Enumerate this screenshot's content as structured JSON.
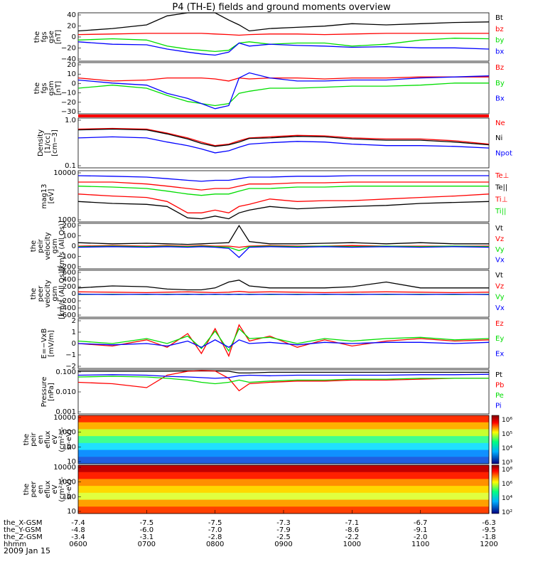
{
  "title": "P4 (TH-E) fields and ground moments overview",
  "date": "2009 Jan 15",
  "time_axis": {
    "rows": [
      {
        "label": "the_X-GSM",
        "values": [
          "-7.4",
          "-7.5",
          "-7.5",
          "-7.3",
          "-7.1",
          "-6.7",
          "-6.3"
        ]
      },
      {
        "label": "the_Y-GSM",
        "values": [
          "-4.8",
          "-6.0",
          "-7.0",
          "-7.9",
          "-8.6",
          "-9.1",
          "-9.5"
        ]
      },
      {
        "label": "the_Z-GSM",
        "values": [
          "-3.4",
          "-3.1",
          "-2.8",
          "-2.5",
          "-2.2",
          "-2.0",
          "-1.8"
        ]
      },
      {
        "label": "hhmm",
        "values": [
          "0600",
          "0700",
          "0800",
          "0900",
          "1000",
          "1100",
          "1200"
        ]
      }
    ]
  },
  "colors": {
    "black": "#000000",
    "red": "#ff0000",
    "green": "#00dd00",
    "blue": "#0000ff"
  },
  "panels": [
    {
      "ylabel": [
        "the",
        "fgs",
        "gse",
        "[nT]"
      ],
      "ticks": [
        "40",
        "20",
        "0",
        "−20",
        "−40"
      ],
      "legend": [
        {
          "t": "Bt",
          "c": "black"
        },
        {
          "t": "bz",
          "c": "red"
        },
        {
          "t": "by",
          "c": "green"
        },
        {
          "t": "bx",
          "c": "blue"
        }
      ]
    },
    {
      "ylabel": [
        "the",
        "fgs",
        "gsm",
        "[nT]"
      ],
      "ticks": [
        "20",
        "10",
        "0",
        "−10",
        "−20",
        "−30"
      ],
      "legend": [
        {
          "t": "Bz",
          "c": "red"
        },
        {
          "t": "By",
          "c": "green"
        },
        {
          "t": "Bx",
          "c": "blue"
        }
      ]
    },
    {
      "ylabel": [
        "Density",
        "[1/cc]",
        "[cm−3]"
      ],
      "ticks": [
        "1.0",
        "0.1"
      ],
      "legend": [
        {
          "t": "Ne",
          "c": "red"
        },
        {
          "t": "Ni",
          "c": "black"
        },
        {
          "t": "Npot",
          "c": "blue"
        }
      ]
    },
    {
      "ylabel": [
        "mag13",
        "[eV]"
      ],
      "ticks": [
        "10000",
        "1000"
      ],
      "legend": [
        {
          "t": "Te⊥",
          "c": "red"
        },
        {
          "t": "Te||",
          "c": "black"
        },
        {
          "t": "Ti⊥",
          "c": "red"
        },
        {
          "t": "Ti||",
          "c": "green"
        }
      ]
    },
    {
      "ylabel": [
        "the",
        "peir",
        "velocity",
        "gsm",
        "[km/s (All Qs)]"
      ],
      "ticks": [
        "200",
        "100",
        "0",
        "−100",
        "−200"
      ],
      "legend": [
        {
          "t": "Vt",
          "c": "black"
        },
        {
          "t": "Vz",
          "c": "red"
        },
        {
          "t": "Vy",
          "c": "green"
        },
        {
          "t": "Vx",
          "c": "blue"
        }
      ]
    },
    {
      "ylabel": [
        "the",
        "peer",
        "velocity",
        "gsm",
        "[km/s (All Qs)]"
      ],
      "ticks": [
        "600",
        "400",
        "200",
        "0",
        "−200",
        "−400",
        "−600"
      ],
      "legend": [
        {
          "t": "Vt",
          "c": "black"
        },
        {
          "t": "Vz",
          "c": "red"
        },
        {
          "t": "Vy",
          "c": "green"
        },
        {
          "t": "Vx",
          "c": "blue"
        }
      ]
    },
    {
      "ylabel": [
        "E=−VxB",
        "[mV/m]"
      ],
      "ticks": [
        "2",
        "1",
        "0",
        "−1",
        "−2"
      ],
      "legend": [
        {
          "t": "Ez",
          "c": "red"
        },
        {
          "t": "Ey",
          "c": "green"
        },
        {
          "t": "Ex",
          "c": "blue"
        }
      ]
    },
    {
      "ylabel": [
        "Pressure",
        "[nPa]"
      ],
      "ticks": [
        "0.100",
        "0.010",
        "0.001"
      ],
      "legend": [
        {
          "t": "Pt",
          "c": "black"
        },
        {
          "t": "Pb",
          "c": "red"
        },
        {
          "t": "Pe",
          "c": "green"
        },
        {
          "t": "Pi",
          "c": "blue"
        }
      ]
    },
    {
      "ylabel": [
        "the",
        "peir",
        "en",
        "eflux",
        "eV",
        "(cm²-s-",
        "sr-eV)"
      ],
      "ticks": [
        "10000",
        "1000",
        "100",
        "10"
      ],
      "colorbar": [
        "10⁶",
        "10⁵",
        "10⁴",
        "10³"
      ]
    },
    {
      "ylabel": [
        "the",
        "peer",
        "en",
        "eflux",
        "eV",
        "(cm²-s-",
        "sr-eV)"
      ],
      "ticks": [
        "10000",
        "1000",
        "100",
        "10"
      ],
      "colorbar": [
        "10⁸",
        "10⁶",
        "10⁴",
        "10²"
      ]
    }
  ],
  "chart_data": {
    "type": "line",
    "x_unit": "hhmm UT",
    "x_ticks": [
      "0600",
      "0700",
      "0800",
      "0900",
      "1000",
      "1100",
      "1200"
    ],
    "xlim": [
      "0600",
      "1200"
    ],
    "x_hours": [
      6.0,
      6.5,
      7.0,
      7.3,
      7.6,
      7.8,
      8.0,
      8.2,
      8.35,
      8.5,
      8.8,
      9.2,
      9.6,
      10.0,
      10.5,
      11.0,
      11.5,
      12.0
    ],
    "series": [
      {
        "panel": 0,
        "name": "Bt",
        "color": "#000000",
        "ylim": [
          -40,
          40
        ],
        "values": [
          10,
          14,
          20,
          35,
          42,
          42,
          40,
          28,
          20,
          10,
          14,
          16,
          18,
          22,
          20,
          22,
          24,
          25
        ]
      },
      {
        "panel": 0,
        "name": "bz",
        "color": "#ff0000",
        "ylim": [
          -40,
          40
        ],
        "values": [
          4,
          5,
          6,
          6,
          6,
          6,
          5,
          4,
          3,
          4,
          5,
          5,
          4,
          5,
          6,
          6,
          6,
          6
        ]
      },
      {
        "panel": 0,
        "name": "by",
        "color": "#00dd00",
        "ylim": [
          -40,
          40
        ],
        "values": [
          -5,
          -3,
          -5,
          -15,
          -20,
          -22,
          -24,
          -22,
          -10,
          -8,
          -12,
          -10,
          -10,
          -15,
          -12,
          -5,
          -2,
          -3
        ]
      },
      {
        "panel": 0,
        "name": "bx",
        "color": "#0000ff",
        "ylim": [
          -40,
          40
        ],
        "values": [
          -8,
          -12,
          -13,
          -20,
          -25,
          -28,
          -30,
          -25,
          -10,
          -15,
          -12,
          -14,
          -15,
          -17,
          -16,
          -18,
          -18,
          -20
        ]
      },
      {
        "panel": 1,
        "name": "Bz",
        "color": "#ff0000",
        "ylim": [
          -30,
          20
        ],
        "values": [
          5,
          2,
          3,
          5,
          5,
          5,
          4,
          2,
          5,
          4,
          5,
          5,
          4,
          5,
          5,
          6,
          6,
          6
        ]
      },
      {
        "panel": 1,
        "name": "By",
        "color": "#00dd00",
        "ylim": [
          -30,
          20
        ],
        "values": [
          -5,
          -2,
          -5,
          -12,
          -18,
          -20,
          -22,
          -20,
          -10,
          -8,
          -5,
          -5,
          -4,
          -3,
          -3,
          -2,
          0,
          0
        ]
      },
      {
        "panel": 1,
        "name": "Bx",
        "color": "#0000ff",
        "ylim": [
          -30,
          20
        ],
        "values": [
          3,
          0,
          -2,
          -10,
          -15,
          -20,
          -25,
          -22,
          5,
          10,
          5,
          2,
          2,
          3,
          3,
          5,
          6,
          7
        ]
      },
      {
        "panel": 2,
        "name": "Ne",
        "color": "#ff0000",
        "ylim": [
          0.1,
          1.0
        ],
        "log": true,
        "values": [
          0.6,
          0.62,
          0.6,
          0.5,
          0.4,
          0.33,
          0.28,
          0.3,
          0.35,
          0.4,
          0.42,
          0.45,
          0.44,
          0.4,
          0.38,
          0.38,
          0.35,
          0.3
        ]
      },
      {
        "panel": 2,
        "name": "Ni",
        "color": "#000000",
        "ylim": [
          0.1,
          1.0
        ],
        "log": true,
        "values": [
          0.58,
          0.6,
          0.58,
          0.48,
          0.38,
          0.31,
          0.27,
          0.29,
          0.33,
          0.39,
          0.4,
          0.43,
          0.42,
          0.38,
          0.36,
          0.36,
          0.33,
          0.29
        ]
      },
      {
        "panel": 2,
        "name": "Npot",
        "color": "#0000ff",
        "ylim": [
          0.1,
          1.0
        ],
        "log": true,
        "values": [
          0.4,
          0.42,
          0.4,
          0.33,
          0.28,
          0.24,
          0.2,
          0.22,
          0.26,
          0.3,
          0.32,
          0.34,
          0.33,
          0.3,
          0.28,
          0.28,
          0.27,
          0.25
        ]
      },
      {
        "panel": 3,
        "name": "Te⊥",
        "color": "#ff0000",
        "ylim": [
          1000,
          10000
        ],
        "log": true,
        "values": [
          3500,
          3200,
          3000,
          2500,
          1500,
          1500,
          1700,
          1500,
          2000,
          2200,
          2800,
          2500,
          2600,
          2600,
          2800,
          3000,
          3200,
          3500
        ]
      },
      {
        "panel": 3,
        "name": "Te||",
        "color": "#000000",
        "ylim": [
          1000,
          10000
        ],
        "log": true,
        "values": [
          2500,
          2300,
          2200,
          2000,
          1200,
          1150,
          1300,
          1150,
          1500,
          1700,
          2000,
          1800,
          1900,
          2000,
          2100,
          2300,
          2400,
          2500
        ]
      },
      {
        "panel": 3,
        "name": "Ti⊥",
        "color": "#ff0000",
        "ylim": [
          1000,
          10000
        ],
        "log": true,
        "values": [
          6000,
          6000,
          5500,
          5000,
          4500,
          4200,
          4500,
          4500,
          5000,
          5500,
          5500,
          5800,
          5800,
          6000,
          6000,
          6000,
          6000,
          6000
        ]
      },
      {
        "panel": 3,
        "name": "Ti||",
        "color": "#00dd00",
        "ylim": [
          1000,
          10000
        ],
        "log": true,
        "values": [
          5000,
          4800,
          4500,
          4000,
          3500,
          3300,
          3500,
          3500,
          4000,
          4500,
          4500,
          4800,
          4800,
          5000,
          5000,
          5000,
          5000,
          5000
        ]
      },
      {
        "panel": 3,
        "name": "Ti (blue)",
        "color": "#0000ff",
        "ylim": [
          1000,
          10000
        ],
        "log": true,
        "values": [
          8000,
          7800,
          7500,
          7000,
          6500,
          6200,
          6500,
          6500,
          7000,
          7500,
          7500,
          7800,
          7800,
          8000,
          8000,
          8000,
          8000,
          8000
        ]
      },
      {
        "panel": 4,
        "name": "Vt",
        "color": "#000000",
        "ylim": [
          -200,
          200
        ],
        "values": [
          30,
          20,
          25,
          20,
          15,
          20,
          25,
          30,
          180,
          40,
          20,
          20,
          25,
          30,
          20,
          30,
          20,
          20
        ]
      },
      {
        "panel": 4,
        "name": "Vz",
        "color": "#ff0000",
        "ylim": [
          -200,
          200
        ],
        "values": [
          0,
          5,
          0,
          5,
          0,
          5,
          0,
          0,
          -10,
          0,
          5,
          0,
          0,
          5,
          0,
          0,
          0,
          0
        ]
      },
      {
        "panel": 4,
        "name": "Vy",
        "color": "#00dd00",
        "ylim": [
          -200,
          200
        ],
        "values": [
          -5,
          0,
          -5,
          0,
          -5,
          0,
          -5,
          -10,
          -40,
          -5,
          0,
          -5,
          0,
          -5,
          0,
          -5,
          0,
          -5
        ]
      },
      {
        "panel": 4,
        "name": "Vx",
        "color": "#0000ff",
        "ylim": [
          -200,
          200
        ],
        "values": [
          -10,
          -5,
          -10,
          -5,
          -10,
          -5,
          -10,
          -20,
          -100,
          -10,
          -5,
          -10,
          -5,
          -10,
          -5,
          -10,
          -5,
          -10
        ]
      },
      {
        "panel": 5,
        "name": "Vt",
        "color": "#000000",
        "ylim": [
          -600,
          600
        ],
        "values": [
          150,
          200,
          180,
          120,
          100,
          100,
          150,
          300,
          350,
          200,
          150,
          150,
          150,
          180,
          300,
          150,
          150,
          150
        ]
      },
      {
        "panel": 5,
        "name": "Vz",
        "color": "#ff0000",
        "ylim": [
          -600,
          600
        ],
        "values": [
          50,
          40,
          30,
          40,
          50,
          40,
          30,
          40,
          60,
          40,
          50,
          40,
          30,
          40,
          50,
          40,
          30,
          40
        ]
      },
      {
        "panel": 5,
        "name": "Vy",
        "color": "#00dd00",
        "ylim": [
          -600,
          600
        ],
        "values": [
          -20,
          -10,
          -20,
          -10,
          -20,
          -10,
          -20,
          -10,
          -20,
          -10,
          -20,
          -10,
          -20,
          -10,
          -20,
          -10,
          -20,
          -10
        ]
      },
      {
        "panel": 5,
        "name": "Vx",
        "color": "#0000ff",
        "ylim": [
          -600,
          600
        ],
        "values": [
          -10,
          -20,
          -10,
          -20,
          -10,
          -20,
          -10,
          -20,
          -10,
          -20,
          -10,
          -20,
          -10,
          -20,
          -10,
          -20,
          -10,
          -20
        ]
      },
      {
        "panel": 6,
        "name": "Ez",
        "color": "#ff0000",
        "ylim": [
          -2,
          2
        ],
        "values": [
          0,
          -0.2,
          0.3,
          -0.3,
          0.8,
          -0.8,
          1.2,
          -1.0,
          1.5,
          0.2,
          0.6,
          -0.3,
          0.3,
          -0.2,
          0.2,
          0.4,
          0.2,
          0.3
        ]
      },
      {
        "panel": 6,
        "name": "Ey",
        "color": "#00dd00",
        "ylim": [
          -2,
          2
        ],
        "values": [
          0.2,
          0,
          0.4,
          0,
          0.6,
          -0.4,
          1.0,
          -0.6,
          1.2,
          0.4,
          0.5,
          0,
          0.4,
          0.2,
          0.4,
          0.5,
          0.3,
          0.4
        ]
      },
      {
        "panel": 6,
        "name": "Ex",
        "color": "#0000ff",
        "ylim": [
          -2,
          2
        ],
        "values": [
          0,
          -0.1,
          0,
          -0.2,
          0.2,
          -0.3,
          0.3,
          -0.3,
          0.3,
          0,
          0.1,
          -0.1,
          0.1,
          0,
          0.1,
          0.1,
          0,
          0.1
        ]
      },
      {
        "panel": 7,
        "name": "Pt",
        "color": "#000000",
        "ylim": [
          0.001,
          0.3
        ],
        "log": true,
        "values": [
          0.25,
          0.25,
          0.25,
          0.25,
          0.26,
          0.26,
          0.26,
          0.25,
          0.2,
          0.2,
          0.22,
          0.22,
          0.22,
          0.22,
          0.22,
          0.22,
          0.22,
          0.22
        ]
      },
      {
        "panel": 7,
        "name": "Pb",
        "color": "#ff0000",
        "ylim": [
          0.001,
          0.3
        ],
        "log": true,
        "values": [
          0.06,
          0.05,
          0.03,
          0.15,
          0.25,
          0.27,
          0.26,
          0.1,
          0.02,
          0.05,
          0.06,
          0.07,
          0.07,
          0.08,
          0.08,
          0.09,
          0.1,
          0.1
        ]
      },
      {
        "panel": 7,
        "name": "Pe",
        "color": "#00dd00",
        "ylim": [
          0.001,
          0.3
        ],
        "log": true,
        "values": [
          0.12,
          0.13,
          0.12,
          0.1,
          0.08,
          0.06,
          0.05,
          0.06,
          0.08,
          0.06,
          0.07,
          0.08,
          0.08,
          0.09,
          0.09,
          0.1,
          0.1,
          0.1
        ]
      },
      {
        "panel": 7,
        "name": "Pi",
        "color": "#0000ff",
        "ylim": [
          0.001,
          0.3
        ],
        "log": true,
        "values": [
          0.15,
          0.16,
          0.15,
          0.13,
          0.12,
          0.11,
          0.1,
          0.11,
          0.14,
          0.15,
          0.14,
          0.15,
          0.15,
          0.15,
          0.15,
          0.16,
          0.16,
          0.17
        ]
      }
    ]
  }
}
